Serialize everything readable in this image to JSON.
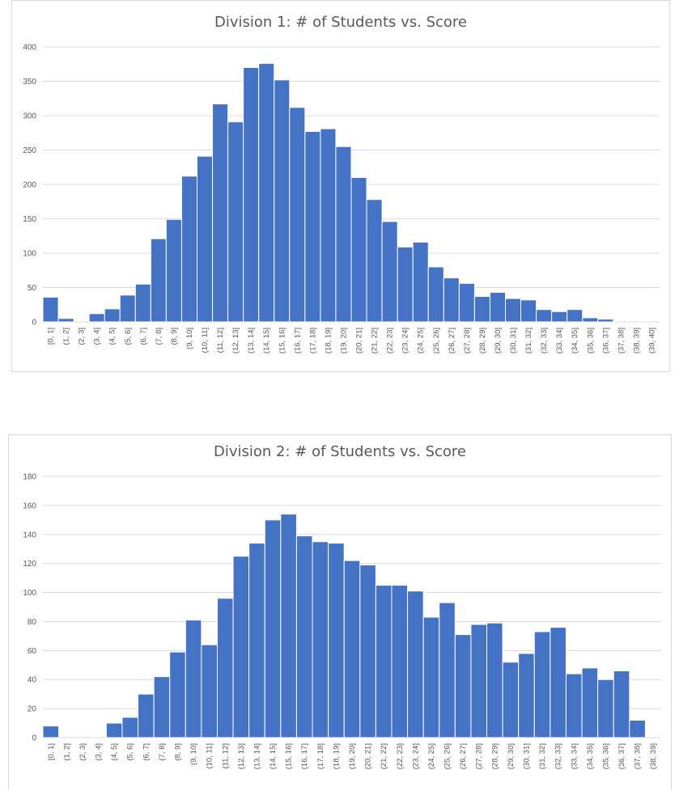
{
  "colors": {
    "bar": "#4472c4",
    "bar_edge": "#ffffff",
    "grid": "#d9d9d9",
    "text": "#595959"
  },
  "chart_data": [
    {
      "type": "bar",
      "title": "Division 1: # of Students vs. Score",
      "xlabel": "",
      "ylabel": "",
      "ylim": [
        0,
        400
      ],
      "yticks": [
        0,
        50,
        100,
        150,
        200,
        250,
        300,
        350,
        400
      ],
      "grid": true,
      "categories": [
        "[0, 1]",
        "(1, 2]",
        "(2, 3]",
        "(3, 4]",
        "(4, 5]",
        "(5, 6]",
        "(6, 7]",
        "(7, 8]",
        "(8, 9]",
        "(9, 10]",
        "(10, 11]",
        "(11, 12]",
        "(12, 13]",
        "(13, 14]",
        "(14, 15]",
        "(15, 16]",
        "(16, 17]",
        "(17, 18]",
        "(18, 19]",
        "(19, 20]",
        "(20, 21]",
        "(21, 22]",
        "(22, 23]",
        "(23, 24]",
        "(24, 25]",
        "(25, 26]",
        "(26, 27]",
        "(27, 28]",
        "(28, 29]",
        "(29, 30]",
        "(30, 31]",
        "(31, 32]",
        "(32, 33]",
        "(33, 34]",
        "(34, 35]",
        "(35, 36]",
        "(36, 37]",
        "(37, 38]",
        "(38, 39]",
        "(39, 40]"
      ],
      "values": [
        36,
        5,
        0,
        12,
        19,
        39,
        55,
        121,
        149,
        212,
        241,
        317,
        291,
        370,
        376,
        352,
        312,
        277,
        281,
        255,
        210,
        178,
        146,
        109,
        116,
        80,
        64,
        56,
        37,
        43,
        34,
        32,
        18,
        15,
        18,
        6,
        4,
        0,
        0,
        0
      ]
    },
    {
      "type": "bar",
      "title": "Division 2: # of Students vs. Score",
      "xlabel": "",
      "ylabel": "",
      "ylim": [
        0,
        180
      ],
      "yticks": [
        0,
        20,
        40,
        60,
        80,
        100,
        120,
        140,
        160,
        180
      ],
      "grid": true,
      "categories": [
        "[0, 1]",
        "(1, 2]",
        "(2, 3]",
        "(3, 4]",
        "(4, 5]",
        "(5, 6]",
        "(6, 7]",
        "(7, 8]",
        "(8, 9]",
        "(9, 10]",
        "(10, 11]",
        "(11, 12]",
        "(12, 13]",
        "(13, 14]",
        "(14, 15]",
        "(15, 16]",
        "(16, 17]",
        "(17, 18]",
        "(18, 19]",
        "(19, 20]",
        "(20, 21]",
        "(21, 22]",
        "(22, 23]",
        "(23, 24]",
        "(24, 25]",
        "(25, 26]",
        "(26, 27]",
        "(27, 28]",
        "(28, 29]",
        "(29, 30]",
        "(30, 31]",
        "(31, 32]",
        "(32, 33]",
        "(33, 34]",
        "(34, 35]",
        "(35, 36]",
        "(36, 37]",
        "(37, 38]",
        "(38, 39]"
      ],
      "values": [
        8,
        0,
        0,
        0,
        10,
        14,
        30,
        42,
        59,
        81,
        64,
        96,
        125,
        134,
        150,
        154,
        139,
        135,
        134,
        122,
        119,
        105,
        105,
        101,
        83,
        93,
        71,
        78,
        79,
        52,
        58,
        73,
        76,
        44,
        48,
        40,
        46,
        12,
        0
      ]
    }
  ]
}
